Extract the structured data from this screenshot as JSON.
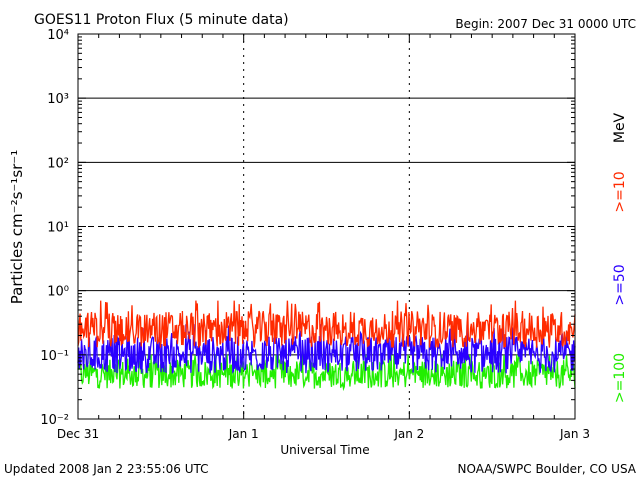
{
  "header": {
    "title": "GOES11 Proton Flux (5 minute data)",
    "begin": "Begin: 2007 Dec 31 0000 UTC"
  },
  "footer": {
    "updated": "Updated 2008 Jan  2 23:55:06 UTC",
    "credit": "NOAA/SWPC Boulder, CO USA"
  },
  "colors": {
    "ge10": "#ff2a00",
    "ge50": "#2a00ff",
    "ge100": "#22ee00",
    "axis": "#000000"
  },
  "chart_data": {
    "type": "line",
    "title": "GOES11 Proton Flux (5 minute data)",
    "xlabel": "Universal Time",
    "ylabel": "Particles cm⁻²s⁻¹sr⁻¹",
    "yscale": "log",
    "ylim": [
      0.01,
      10000
    ],
    "y_ticks": [
      "10⁻²",
      "10⁻¹",
      "10⁰",
      "10¹",
      "10²",
      "10³",
      "10⁴"
    ],
    "x_ticks": [
      "Dec 31",
      "Jan 1",
      "Jan 2",
      "Jan 3"
    ],
    "xlim_days": [
      0,
      3
    ],
    "grid": "horizontal lines at each decade (10¹ dashed), vertical dashed at day boundaries",
    "legend_title": "MeV",
    "legend_placement": "right",
    "series": [
      {
        "name": ">=10",
        "color_key": "ge10",
        "typical": 0.25,
        "min": 0.12,
        "max": 0.7
      },
      {
        "name": ">=50",
        "color_key": "ge50",
        "typical": 0.1,
        "min": 0.05,
        "max": 0.3
      },
      {
        "name": ">=100",
        "color_key": "ge100",
        "typical": 0.05,
        "min": 0.025,
        "max": 0.1
      }
    ]
  }
}
